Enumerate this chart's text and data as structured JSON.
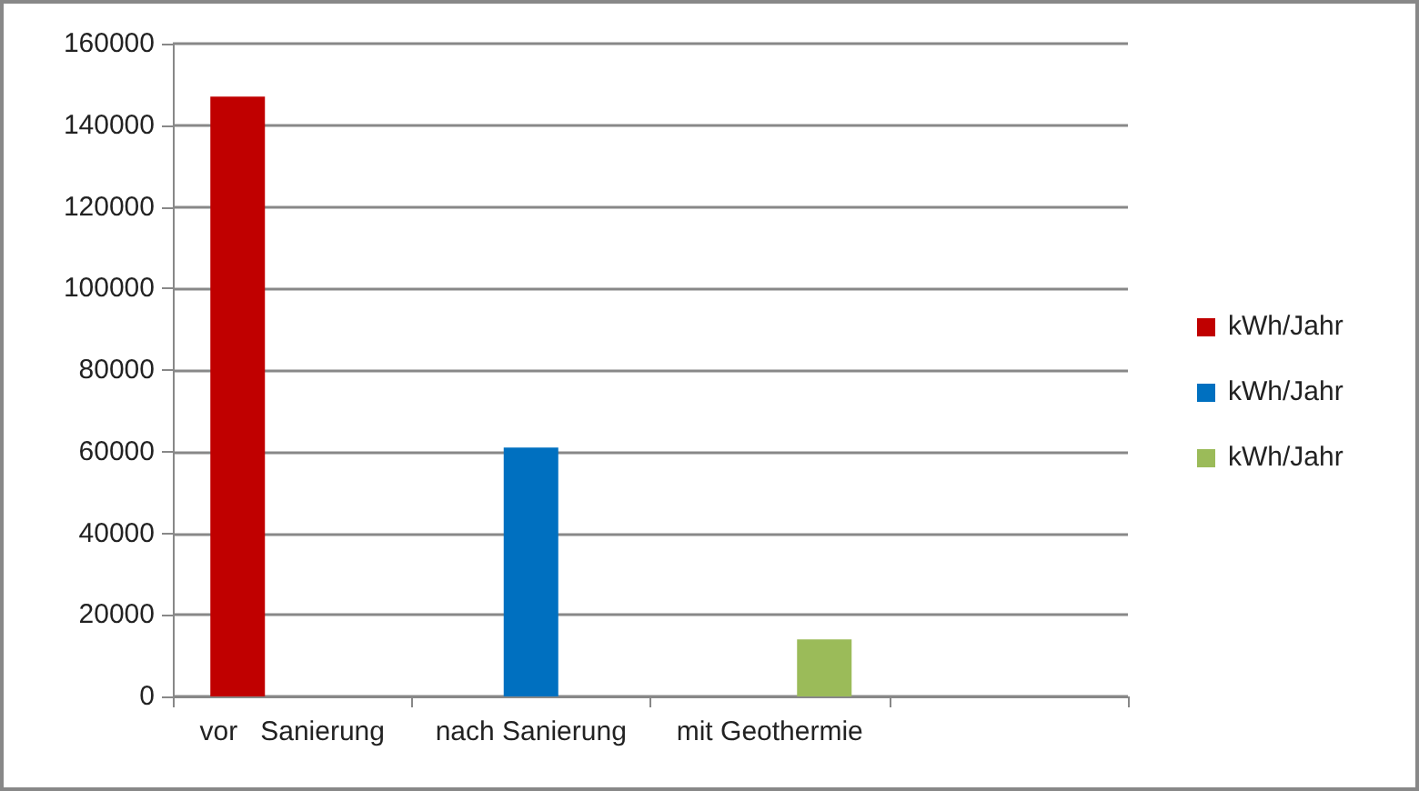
{
  "chart_data": {
    "type": "bar",
    "categories": [
      "vor   Sanierung",
      "nach Sanierung",
      "mit Geothermie",
      null
    ],
    "series": [
      {
        "name": "kWh/Jahr",
        "color": "#c00000",
        "values": [
          147000,
          null,
          null,
          null
        ]
      },
      {
        "name": "kWh/Jahr",
        "color": "#0070c0",
        "values": [
          null,
          61000,
          null,
          null
        ]
      },
      {
        "name": "kWh/Jahr",
        "color": "#9bbb59",
        "values": [
          null,
          null,
          14000,
          null
        ]
      }
    ],
    "ylim": [
      0,
      160000
    ],
    "yticks": [
      0,
      20000,
      40000,
      60000,
      80000,
      100000,
      120000,
      140000,
      160000
    ],
    "grid": "y",
    "legend": "right"
  }
}
